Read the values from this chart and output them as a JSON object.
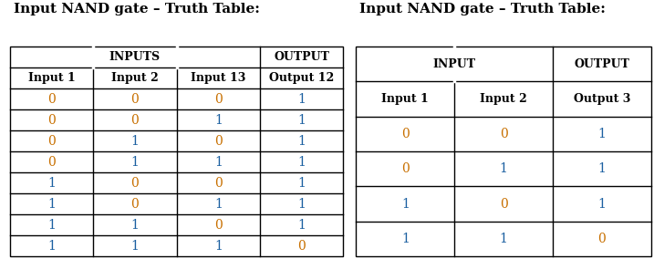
{
  "title1": "Input NAND gate – Truth Table:",
  "title2": "Input NAND gate – Truth Table:",
  "table1": {
    "span_labels": [
      "INPUTS",
      "OUTPUT"
    ],
    "span_cols": [
      3,
      1
    ],
    "col_labels": [
      "Input 1",
      "Input 2",
      "Input 13",
      "Output 12"
    ],
    "data": [
      [
        "0",
        "0",
        "0",
        "1"
      ],
      [
        "0",
        "0",
        "1",
        "1"
      ],
      [
        "0",
        "1",
        "0",
        "1"
      ],
      [
        "0",
        "1",
        "1",
        "1"
      ],
      [
        "1",
        "0",
        "0",
        "1"
      ],
      [
        "1",
        "0",
        "1",
        "1"
      ],
      [
        "1",
        "1",
        "0",
        "1"
      ],
      [
        "1",
        "1",
        "1",
        "0"
      ]
    ]
  },
  "table2": {
    "span_labels": [
      "INPUT",
      "OUTPUT"
    ],
    "span_cols": [
      2,
      1
    ],
    "col_labels": [
      "Input 1",
      "Input 2",
      "Output 3"
    ],
    "data": [
      [
        "0",
        "0",
        "1"
      ],
      [
        "0",
        "1",
        "1"
      ],
      [
        "1",
        "0",
        "1"
      ],
      [
        "1",
        "1",
        "0"
      ]
    ]
  },
  "title_color": "#000000",
  "header_text_color": "#000000",
  "data_text_color_0": "#c87000",
  "data_text_color_1": "#1a5fa0",
  "bg_color": "#ffffff",
  "line_color": "#000000",
  "title_fontsize": 11,
  "header_fontsize": 9,
  "data_fontsize": 10,
  "line_width": 1.0
}
